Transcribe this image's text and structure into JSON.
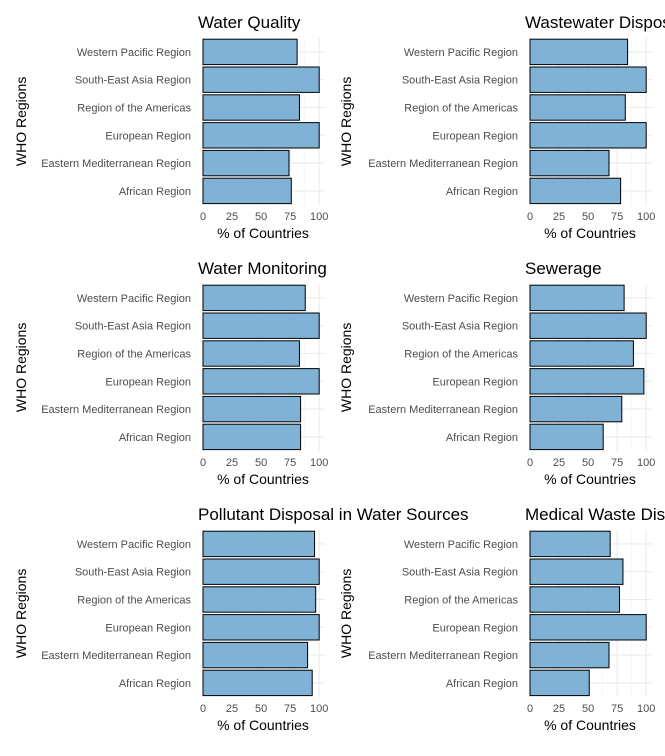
{
  "chart_data": [
    {
      "type": "bar",
      "orientation": "horizontal",
      "title": "Water Quality",
      "xlabel": "% of Countries",
      "ylabel": "WHO Regions",
      "xlim": [
        0,
        105
      ],
      "xticks": [
        "0",
        "25",
        "50",
        "75",
        "100"
      ],
      "categories": [
        "Western Pacific Region",
        "South-East Asia Region",
        "Region of the Americas",
        "European Region",
        "Eastern Mediterranean Region",
        "African Region"
      ],
      "values": [
        81,
        100,
        83,
        100,
        74,
        76
      ]
    },
    {
      "type": "bar",
      "orientation": "horizontal",
      "title": "Wastewater Disposal",
      "xlabel": "% of Countries",
      "ylabel": "WHO Regions",
      "xlim": [
        0,
        105
      ],
      "xticks": [
        "0",
        "25",
        "50",
        "75",
        "100"
      ],
      "categories": [
        "Western Pacific Region",
        "South-East Asia Region",
        "Region of the Americas",
        "European Region",
        "Eastern Mediterranean Region",
        "African Region"
      ],
      "values": [
        84,
        100,
        82,
        100,
        68,
        78
      ]
    },
    {
      "type": "bar",
      "orientation": "horizontal",
      "title": "Water Monitoring",
      "xlabel": "% of Countries",
      "ylabel": "WHO Regions",
      "xlim": [
        0,
        105
      ],
      "xticks": [
        "0",
        "25",
        "50",
        "75",
        "100"
      ],
      "categories": [
        "Western Pacific Region",
        "South-East Asia Region",
        "Region of the Americas",
        "European Region",
        "Eastern Mediterranean Region",
        "African Region"
      ],
      "values": [
        88,
        100,
        83,
        100,
        84,
        84
      ]
    },
    {
      "type": "bar",
      "orientation": "horizontal",
      "title": "Sewerage",
      "xlabel": "% of Countries",
      "ylabel": "WHO Regions",
      "xlim": [
        0,
        105
      ],
      "xticks": [
        "0",
        "25",
        "50",
        "75",
        "100"
      ],
      "categories": [
        "Western Pacific Region",
        "South-East Asia Region",
        "Region of the Americas",
        "European Region",
        "Eastern Mediterranean Region",
        "African Region"
      ],
      "values": [
        81,
        100,
        89,
        98,
        79,
        63
      ]
    },
    {
      "type": "bar",
      "orientation": "horizontal",
      "title": "Pollutant Disposal in Water Sources",
      "xlabel": "% of Countries",
      "ylabel": "WHO Regions",
      "xlim": [
        0,
        105
      ],
      "xticks": [
        "0",
        "25",
        "50",
        "75",
        "100"
      ],
      "categories": [
        "Western Pacific Region",
        "South-East Asia Region",
        "Region of the Americas",
        "European Region",
        "Eastern Mediterranean Region",
        "African Region"
      ],
      "values": [
        96,
        100,
        97,
        100,
        90,
        94
      ]
    },
    {
      "type": "bar",
      "orientation": "horizontal",
      "title": "Medical Waste Disposal",
      "xlabel": "% of Countries",
      "ylabel": "WHO Regions",
      "xlim": [
        0,
        105
      ],
      "xticks": [
        "0",
        "25",
        "50",
        "75",
        "100"
      ],
      "categories": [
        "Western Pacific Region",
        "South-East Asia Region",
        "Region of the Americas",
        "European Region",
        "Eastern Mediterranean Region",
        "African Region"
      ],
      "values": [
        69,
        80,
        77,
        100,
        68,
        51
      ]
    }
  ],
  "colors": {
    "bar_fill": "#7fb2d5",
    "bar_stroke": "#000000",
    "grid": "#ebebeb"
  }
}
